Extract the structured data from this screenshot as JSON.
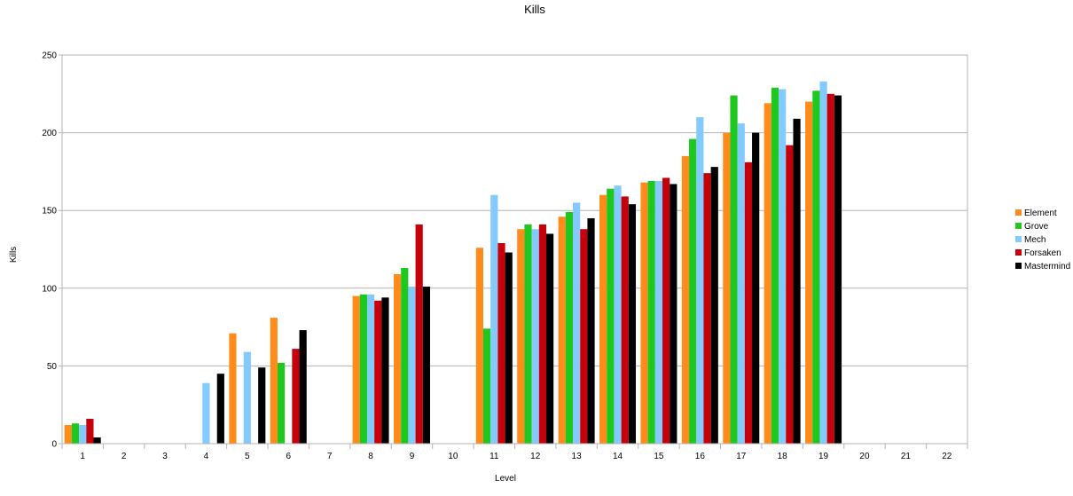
{
  "chart_data": {
    "type": "bar",
    "title": "Kills",
    "xlabel": "Level",
    "ylabel": "Kills",
    "ylim": [
      0,
      250
    ],
    "yticks": [
      0,
      50,
      100,
      150,
      200,
      250
    ],
    "grid": true,
    "legend_position": "right",
    "categories": [
      "1",
      "2",
      "3",
      "4",
      "5",
      "6",
      "7",
      "8",
      "9",
      "10",
      "11",
      "12",
      "13",
      "14",
      "15",
      "16",
      "17",
      "18",
      "19",
      "20",
      "21",
      "22"
    ],
    "series": [
      {
        "name": "Element",
        "color": "#ff8c1a",
        "values": [
          12,
          0,
          0,
          0,
          71,
          81,
          0,
          95,
          109,
          0,
          126,
          138,
          146,
          160,
          168,
          185,
          200,
          219,
          220,
          0,
          0,
          0
        ]
      },
      {
        "name": "Grove",
        "color": "#1ec81e",
        "values": [
          13,
          0,
          0,
          0,
          0,
          52,
          0,
          96,
          113,
          0,
          74,
          141,
          149,
          164,
          169,
          196,
          224,
          229,
          227,
          0,
          0,
          0
        ]
      },
      {
        "name": "Mech",
        "color": "#83caff",
        "values": [
          12,
          0,
          0,
          39,
          59,
          0,
          0,
          96,
          101,
          0,
          160,
          138,
          155,
          166,
          169,
          210,
          206,
          228,
          233,
          0,
          0,
          0
        ]
      },
      {
        "name": "Forsaken",
        "color": "#c5000b",
        "values": [
          16,
          0,
          0,
          0,
          0,
          61,
          0,
          92,
          141,
          0,
          129,
          141,
          138,
          159,
          171,
          174,
          181,
          192,
          225,
          0,
          0,
          0
        ]
      },
      {
        "name": "Mastermind",
        "color": "#000000",
        "values": [
          4,
          0,
          0,
          45,
          49,
          73,
          0,
          94,
          101,
          0,
          123,
          135,
          145,
          154,
          167,
          178,
          200,
          209,
          224,
          0,
          0,
          0
        ]
      }
    ]
  }
}
